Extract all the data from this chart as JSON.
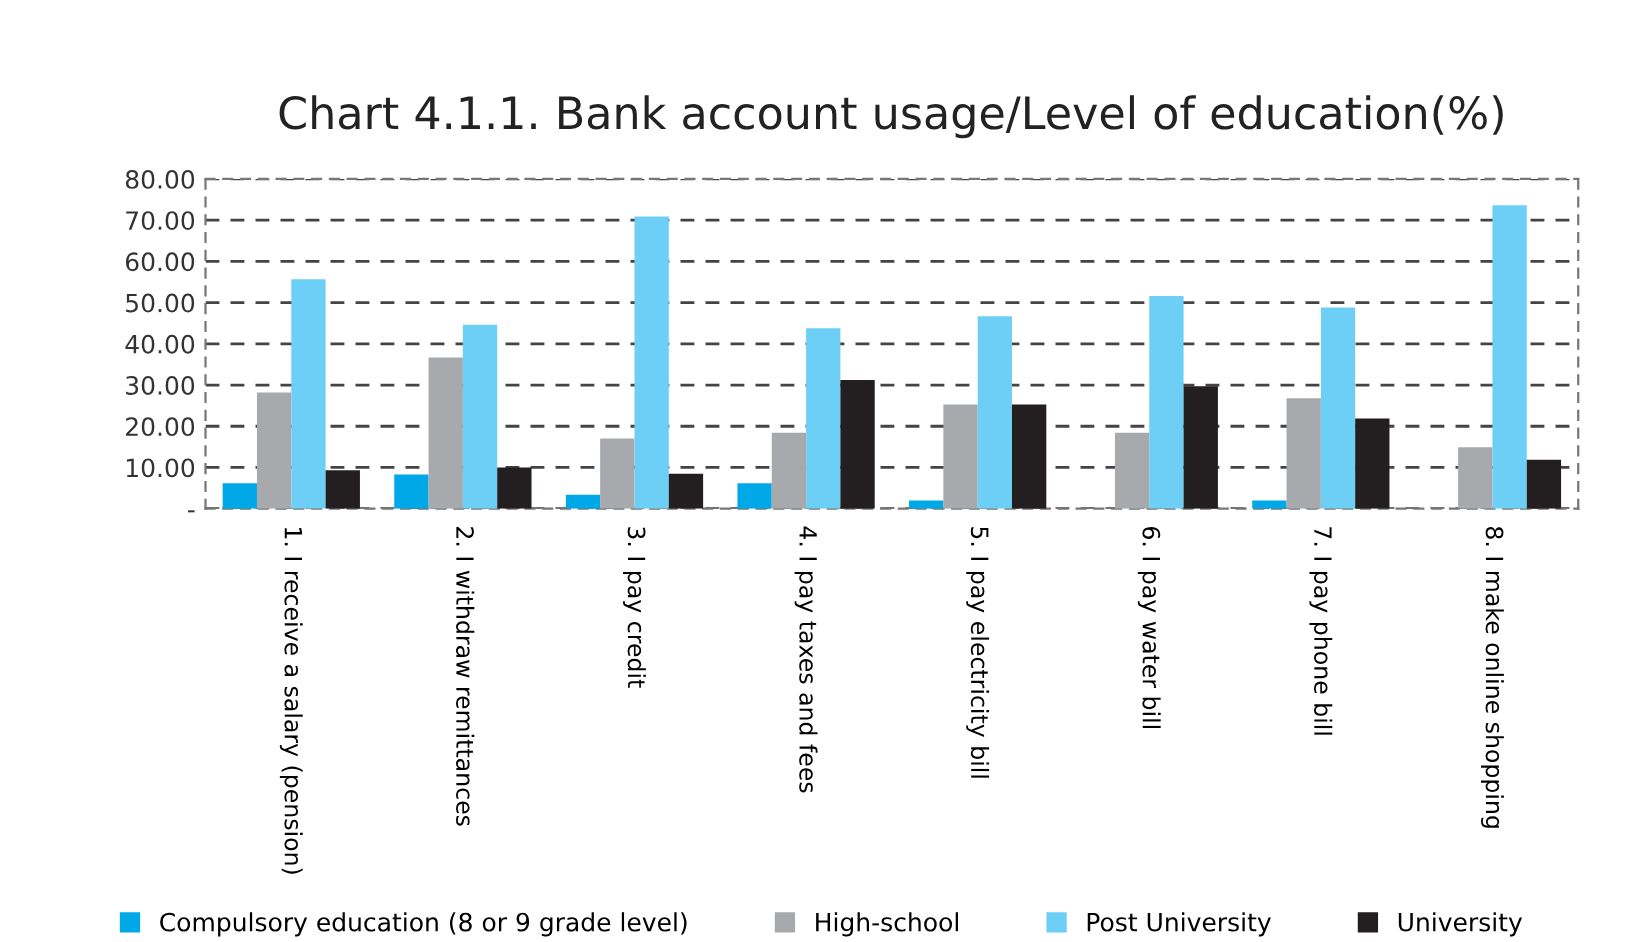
{
  "chart_data": {
    "type": "bar",
    "title": "Chart 4.1.1. Bank account usage/Level of education(%)",
    "categories": [
      "1. I receive a salary (pension)",
      "2. I withdraw remittances",
      "3. I pay credit",
      "4. I pay taxes and fees",
      "5. I pay electricity bill",
      "6. I pay water bill",
      "7. I pay phone bill",
      "8. I make online shopping"
    ],
    "series": [
      {
        "name": "Compulsory education (8 or 9 grade level)",
        "color": "#00a8e8",
        "values": [
          6.2,
          8.3,
          3.4,
          6.2,
          2.0,
          null,
          2.0,
          null
        ]
      },
      {
        "name": "High-school",
        "color": "#a7a9ac",
        "values": [
          28.2,
          36.7,
          17.0,
          18.4,
          25.3,
          18.4,
          26.8,
          14.9
        ]
      },
      {
        "name": "Post University",
        "color": "#6dcff6",
        "values": [
          55.7,
          44.6,
          70.9,
          43.8,
          46.7,
          51.6,
          48.8,
          73.6
        ]
      },
      {
        "name": "University",
        "color": "#231f20",
        "values": [
          9.3,
          10.0,
          8.5,
          31.2,
          25.3,
          29.7,
          21.9,
          11.9
        ]
      }
    ],
    "ylim": [
      0,
      80
    ],
    "yticks": [
      {
        "value": 0,
        "label": "-"
      },
      {
        "value": 10,
        "label": "10.00"
      },
      {
        "value": 20,
        "label": "20.00"
      },
      {
        "value": 30,
        "label": "30.00"
      },
      {
        "value": 40,
        "label": "40.00"
      },
      {
        "value": 50,
        "label": "50.00"
      },
      {
        "value": 60,
        "label": "60.00"
      },
      {
        "value": 70,
        "label": "70.00"
      },
      {
        "value": 80,
        "label": "80.00"
      }
    ],
    "grid": "y",
    "legend": "bottom"
  }
}
